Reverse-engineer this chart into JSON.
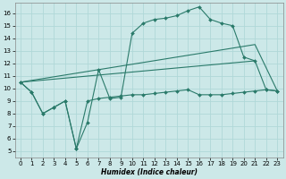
{
  "xlabel": "Humidex (Indice chaleur)",
  "line_color": "#2a7a6a",
  "bg_color": "#cce8e8",
  "grid_color": "#b0d8d8",
  "xlim": [
    -0.5,
    23.5
  ],
  "ylim": [
    4.5,
    16.8
  ],
  "yticks": [
    5,
    6,
    7,
    8,
    9,
    10,
    11,
    12,
    13,
    14,
    15,
    16
  ],
  "xticks": [
    0,
    1,
    2,
    3,
    4,
    5,
    6,
    7,
    8,
    9,
    10,
    11,
    12,
    13,
    14,
    15,
    16,
    17,
    18,
    19,
    20,
    21,
    22,
    23
  ],
  "line1_x": [
    0,
    1,
    2,
    3,
    4,
    5,
    6,
    7,
    8,
    9,
    10,
    11,
    12,
    13,
    14,
    15,
    16,
    17,
    18,
    19,
    20,
    21,
    22,
    23
  ],
  "line1_y": [
    10.5,
    9.7,
    8.0,
    8.5,
    9.0,
    5.2,
    7.3,
    11.5,
    9.2,
    9.3,
    14.4,
    15.2,
    15.5,
    15.6,
    15.8,
    16.2,
    16.5,
    15.5,
    15.2,
    15.0,
    12.5,
    12.2,
    9.9,
    9.8
  ],
  "line2_x": [
    0,
    1,
    2,
    3,
    4,
    5,
    6,
    7,
    8,
    9,
    10,
    11,
    12,
    13,
    14,
    15,
    16,
    17,
    18,
    19,
    20,
    21,
    22,
    23
  ],
  "line2_y": [
    10.5,
    9.7,
    8.0,
    8.5,
    9.0,
    5.2,
    9.0,
    9.2,
    9.3,
    9.4,
    9.5,
    9.5,
    9.6,
    9.7,
    9.8,
    9.9,
    9.5,
    9.5,
    9.5,
    9.6,
    9.7,
    9.8,
    9.9,
    9.8
  ],
  "line3_x": [
    0,
    21,
    23
  ],
  "line3_y": [
    10.5,
    13.5,
    9.8
  ],
  "line4_x": [
    0,
    21
  ],
  "line4_y": [
    10.5,
    12.2
  ],
  "marker": "D",
  "markersize": 2.0,
  "linewidth": 0.8,
  "tick_fontsize": 5.0,
  "xlabel_fontsize": 5.5
}
